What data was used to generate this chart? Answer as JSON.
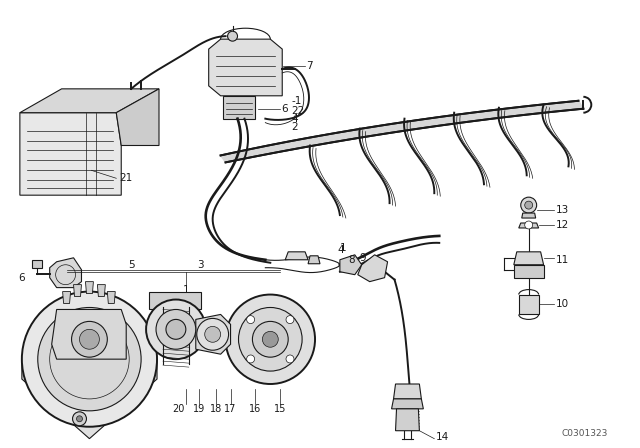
{
  "background_color": "#ffffff",
  "line_color": "#1a1a1a",
  "diagram_id": "C0301323",
  "fig_width": 6.4,
  "fig_height": 4.48,
  "dpi": 100
}
